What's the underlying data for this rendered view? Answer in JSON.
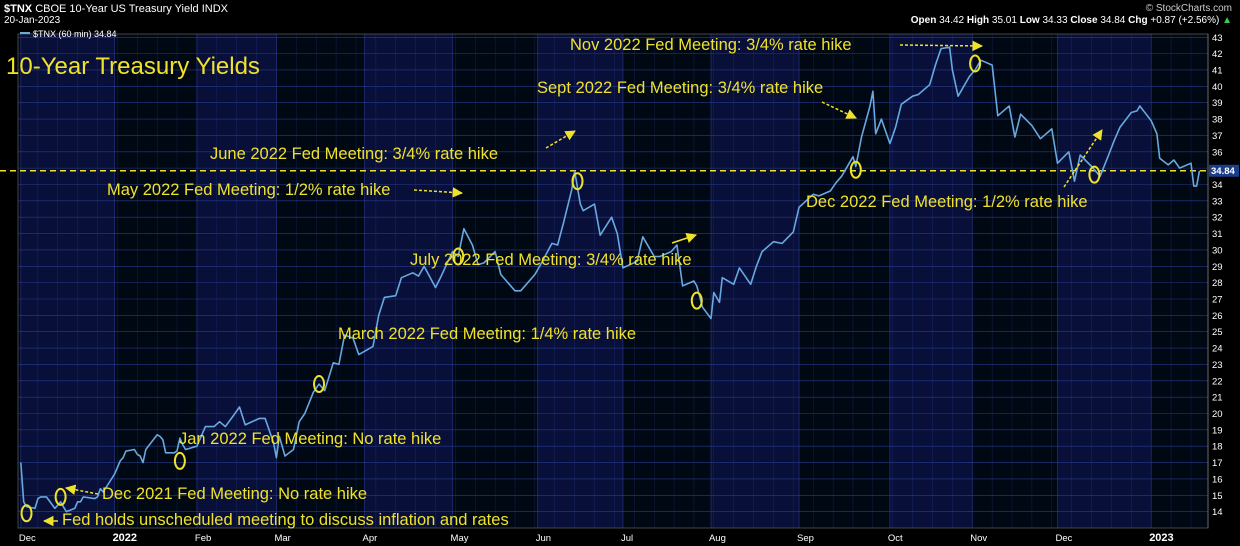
{
  "header": {
    "symbol": "$TNX",
    "name": "CBOE 10-Year US Treasury Yield INDX",
    "date": "20-Jan-2023",
    "copyright": "© StockCharts.com",
    "legend": "$TNX (60 min) 34.84",
    "quote": {
      "open_label": "Open",
      "open": "34.42",
      "high_label": "High",
      "high": "35.01",
      "low_label": "Low",
      "low": "34.33",
      "close_label": "Close",
      "close": "34.84",
      "chg_label": "Chg",
      "chg": "+0.87 (+2.56%)",
      "chg_arrow": "▲"
    }
  },
  "colors": {
    "background": "#000000",
    "band_a": "#000814",
    "band_b": "#08103a",
    "grid": "#2a3a8c",
    "line": "#67a9e0",
    "annotation": "#f0e22a",
    "text": "#ffffff"
  },
  "chart_data": {
    "type": "line",
    "title": "10-Year Treasury Yields",
    "series": [
      {
        "name": "$TNX (60 min)",
        "points": [
          [
            "2021-12-01",
            17.0
          ],
          [
            "2021-12-02",
            14.6
          ],
          [
            "2021-12-03",
            14.3
          ],
          [
            "2021-12-06",
            14.2
          ],
          [
            "2021-12-07",
            14.8
          ],
          [
            "2021-12-08",
            14.9
          ],
          [
            "2021-12-09",
            14.9
          ],
          [
            "2021-12-10",
            14.9
          ],
          [
            "2021-12-13",
            14.2
          ],
          [
            "2021-12-14",
            14.4
          ],
          [
            "2021-12-15",
            14.6
          ],
          [
            "2021-12-16",
            14.3
          ],
          [
            "2021-12-17",
            14.0
          ],
          [
            "2021-12-20",
            14.2
          ],
          [
            "2021-12-21",
            14.6
          ],
          [
            "2021-12-22",
            14.6
          ],
          [
            "2021-12-23",
            14.9
          ],
          [
            "2021-12-27",
            14.8
          ],
          [
            "2021-12-28",
            14.9
          ],
          [
            "2021-12-29",
            15.4
          ],
          [
            "2021-12-30",
            15.2
          ],
          [
            "2022-01-03",
            16.3
          ],
          [
            "2022-01-04",
            16.7
          ],
          [
            "2022-01-05",
            17.1
          ],
          [
            "2022-01-06",
            17.3
          ],
          [
            "2022-01-07",
            17.7
          ],
          [
            "2022-01-10",
            17.8
          ],
          [
            "2022-01-11",
            17.5
          ],
          [
            "2022-01-12",
            17.4
          ],
          [
            "2022-01-13",
            17.0
          ],
          [
            "2022-01-14",
            17.8
          ],
          [
            "2022-01-18",
            18.7
          ],
          [
            "2022-01-19",
            18.6
          ],
          [
            "2022-01-20",
            18.4
          ],
          [
            "2022-01-21",
            17.6
          ],
          [
            "2022-01-24",
            17.6
          ],
          [
            "2022-01-25",
            17.7
          ],
          [
            "2022-01-26",
            18.5
          ],
          [
            "2022-01-27",
            18.1
          ],
          [
            "2022-01-28",
            17.8
          ],
          [
            "2022-02-01",
            18.0
          ],
          [
            "2022-02-04",
            19.2
          ],
          [
            "2022-02-07",
            19.2
          ],
          [
            "2022-02-09",
            19.5
          ],
          [
            "2022-02-11",
            19.2
          ],
          [
            "2022-02-14",
            19.9
          ],
          [
            "2022-02-16",
            20.4
          ],
          [
            "2022-02-18",
            19.3
          ],
          [
            "2022-02-23",
            19.7
          ],
          [
            "2022-02-25",
            19.7
          ],
          [
            "2022-02-28",
            18.2
          ],
          [
            "2022-03-01",
            17.3
          ],
          [
            "2022-03-02",
            18.6
          ],
          [
            "2022-03-04",
            17.4
          ],
          [
            "2022-03-07",
            17.8
          ],
          [
            "2022-03-09",
            19.5
          ],
          [
            "2022-03-11",
            20.0
          ],
          [
            "2022-03-14",
            21.3
          ],
          [
            "2022-03-16",
            21.8
          ],
          [
            "2022-03-18",
            21.4
          ],
          [
            "2022-03-21",
            23.1
          ],
          [
            "2022-03-23",
            23.0
          ],
          [
            "2022-03-25",
            24.8
          ],
          [
            "2022-03-28",
            24.6
          ],
          [
            "2022-03-30",
            23.6
          ],
          [
            "2022-04-01",
            23.8
          ],
          [
            "2022-04-04",
            24.1
          ],
          [
            "2022-04-06",
            26.0
          ],
          [
            "2022-04-08",
            27.1
          ],
          [
            "2022-04-12",
            27.2
          ],
          [
            "2022-04-14",
            28.3
          ],
          [
            "2022-04-18",
            28.6
          ],
          [
            "2022-04-20",
            28.4
          ],
          [
            "2022-04-22",
            29.0
          ],
          [
            "2022-04-26",
            27.7
          ],
          [
            "2022-04-28",
            28.4
          ],
          [
            "2022-05-02",
            29.9
          ],
          [
            "2022-05-04",
            29.6
          ],
          [
            "2022-05-06",
            31.3
          ],
          [
            "2022-05-09",
            30.3
          ],
          [
            "2022-05-11",
            29.1
          ],
          [
            "2022-05-13",
            29.2
          ],
          [
            "2022-05-17",
            29.9
          ],
          [
            "2022-05-19",
            28.5
          ],
          [
            "2022-05-24",
            27.5
          ],
          [
            "2022-05-26",
            27.5
          ],
          [
            "2022-05-31",
            28.5
          ],
          [
            "2022-06-02",
            29.1
          ],
          [
            "2022-06-06",
            30.4
          ],
          [
            "2022-06-08",
            30.3
          ],
          [
            "2022-06-10",
            31.6
          ],
          [
            "2022-06-13",
            33.7
          ],
          [
            "2022-06-14",
            34.8
          ],
          [
            "2022-06-16",
            32.8
          ],
          [
            "2022-06-17",
            32.4
          ],
          [
            "2022-06-21",
            32.8
          ],
          [
            "2022-06-23",
            30.9
          ],
          [
            "2022-06-27",
            32.0
          ],
          [
            "2022-06-29",
            31.0
          ],
          [
            "2022-07-01",
            28.9
          ],
          [
            "2022-07-06",
            29.3
          ],
          [
            "2022-07-08",
            30.8
          ],
          [
            "2022-07-12",
            29.6
          ],
          [
            "2022-07-14",
            29.6
          ],
          [
            "2022-07-18",
            29.9
          ],
          [
            "2022-07-20",
            30.3
          ],
          [
            "2022-07-22",
            27.8
          ],
          [
            "2022-07-26",
            28.1
          ],
          [
            "2022-07-27",
            27.8
          ],
          [
            "2022-07-29",
            26.5
          ],
          [
            "2022-08-01",
            25.8
          ],
          [
            "2022-08-02",
            27.4
          ],
          [
            "2022-08-04",
            26.8
          ],
          [
            "2022-08-05",
            28.3
          ],
          [
            "2022-08-09",
            27.9
          ],
          [
            "2022-08-11",
            28.9
          ],
          [
            "2022-08-15",
            27.9
          ],
          [
            "2022-08-17",
            29.0
          ],
          [
            "2022-08-19",
            29.9
          ],
          [
            "2022-08-23",
            30.5
          ],
          [
            "2022-08-26",
            30.4
          ],
          [
            "2022-08-30",
            31.1
          ],
          [
            "2022-09-01",
            32.6
          ],
          [
            "2022-09-06",
            33.4
          ],
          [
            "2022-09-08",
            33.3
          ],
          [
            "2022-09-12",
            33.6
          ],
          [
            "2022-09-14",
            34.1
          ],
          [
            "2022-09-16",
            34.5
          ],
          [
            "2022-09-20",
            35.7
          ],
          [
            "2022-09-21",
            35.1
          ],
          [
            "2022-09-23",
            36.9
          ],
          [
            "2022-09-26",
            38.8
          ],
          [
            "2022-09-27",
            39.7
          ],
          [
            "2022-09-28",
            37.1
          ],
          [
            "2022-09-30",
            38.0
          ],
          [
            "2022-10-03",
            36.5
          ],
          [
            "2022-10-05",
            37.5
          ],
          [
            "2022-10-07",
            38.9
          ],
          [
            "2022-10-11",
            39.4
          ],
          [
            "2022-10-13",
            39.5
          ],
          [
            "2022-10-17",
            40.1
          ],
          [
            "2022-10-19",
            41.3
          ],
          [
            "2022-10-21",
            42.3
          ],
          [
            "2022-10-24",
            42.4
          ],
          [
            "2022-10-25",
            41.0
          ],
          [
            "2022-10-27",
            39.4
          ],
          [
            "2022-10-31",
            40.6
          ],
          [
            "2022-11-02",
            41.0
          ],
          [
            "2022-11-04",
            41.6
          ],
          [
            "2022-11-08",
            41.3
          ],
          [
            "2022-11-10",
            38.2
          ],
          [
            "2022-11-14",
            38.8
          ],
          [
            "2022-11-16",
            36.9
          ],
          [
            "2022-11-18",
            38.3
          ],
          [
            "2022-11-22",
            37.6
          ],
          [
            "2022-11-25",
            36.8
          ],
          [
            "2022-11-29",
            37.4
          ],
          [
            "2022-12-01",
            35.3
          ],
          [
            "2022-12-05",
            36.0
          ],
          [
            "2022-12-07",
            34.2
          ],
          [
            "2022-12-09",
            35.8
          ],
          [
            "2022-12-13",
            35.1
          ],
          [
            "2022-12-14",
            34.9
          ],
          [
            "2022-12-16",
            34.5
          ],
          [
            "2022-12-19",
            35.8
          ],
          [
            "2022-12-21",
            36.7
          ],
          [
            "2022-12-23",
            37.5
          ],
          [
            "2022-12-27",
            38.4
          ],
          [
            "2022-12-29",
            38.5
          ],
          [
            "2022-12-30",
            38.8
          ],
          [
            "2023-01-03",
            37.9
          ],
          [
            "2023-01-05",
            37.1
          ],
          [
            "2023-01-06",
            35.6
          ],
          [
            "2023-01-09",
            35.2
          ],
          [
            "2023-01-11",
            35.5
          ],
          [
            "2023-01-13",
            35.0
          ],
          [
            "2023-01-17",
            35.3
          ],
          [
            "2023-01-18",
            33.9
          ],
          [
            "2023-01-19",
            33.9
          ],
          [
            "2023-01-20",
            34.84
          ]
        ]
      }
    ],
    "reference_line": {
      "value": 34.84,
      "label": "34.84",
      "style": "dashed"
    },
    "xlim": [
      "2021-11-30",
      "2023-01-23"
    ],
    "ylim": [
      13.0,
      43.2
    ],
    "y_ticks": [
      14,
      15,
      16,
      17,
      18,
      19,
      20,
      21,
      22,
      23,
      24,
      25,
      26,
      27,
      28,
      29,
      30,
      31,
      32,
      33,
      34,
      35,
      36,
      37,
      38,
      39,
      40,
      41,
      42,
      43
    ],
    "x_ticks": [
      {
        "label": "Dec",
        "date": "2021-12-01",
        "bold": false
      },
      {
        "label": "2022",
        "date": "2022-01-03",
        "bold": true
      },
      {
        "label": "Feb",
        "date": "2022-02-01",
        "bold": false
      },
      {
        "label": "Mar",
        "date": "2022-03-01",
        "bold": false
      },
      {
        "label": "Apr",
        "date": "2022-04-01",
        "bold": false
      },
      {
        "label": "May",
        "date": "2022-05-02",
        "bold": false
      },
      {
        "label": "Jun",
        "date": "2022-06-01",
        "bold": false
      },
      {
        "label": "Jul",
        "date": "2022-07-01",
        "bold": false
      },
      {
        "label": "Aug",
        "date": "2022-08-01",
        "bold": false
      },
      {
        "label": "Sep",
        "date": "2022-09-01",
        "bold": false
      },
      {
        "label": "Oct",
        "date": "2022-10-03",
        "bold": false
      },
      {
        "label": "Nov",
        "date": "2022-11-01",
        "bold": false
      },
      {
        "label": "Dec",
        "date": "2022-12-01",
        "bold": false
      },
      {
        "label": "2023",
        "date": "2023-01-03",
        "bold": true
      }
    ],
    "grid": true,
    "annotations": [
      {
        "text": "Fed holds unscheduled meeting to discuss inflation and rates",
        "date": "2021-12-03",
        "value": 13.9
      },
      {
        "text": "Dec 2021 Fed Meeting: No rate hike",
        "date": "2021-12-15",
        "value": 14.9
      },
      {
        "text": "Jan 2022 Fed Meeting: No rate hike",
        "date": "2022-01-26",
        "value": 17.1
      },
      {
        "text": "March 2022 Fed Meeting: 1/4% rate hike",
        "date": "2022-03-16",
        "value": 21.8
      },
      {
        "text": "May 2022 Fed Meeting: 1/2% rate hike",
        "date": "2022-05-04",
        "value": 29.6
      },
      {
        "text": "June 2022 Fed Meeting: 3/4% rate hike",
        "date": "2022-06-15",
        "value": 34.2
      },
      {
        "text": "July 2022 Fed Meeting: 3/4% rate hike",
        "date": "2022-07-27",
        "value": 26.9
      },
      {
        "text": "Sept 2022 Fed Meeting: 3/4% rate hike",
        "date": "2022-09-21",
        "value": 34.9
      },
      {
        "text": "Nov 2022 Fed Meeting: 3/4% rate hike",
        "date": "2022-11-02",
        "value": 41.4
      },
      {
        "text": "Dec 2022 Fed Meeting: 1/2% rate hike",
        "date": "2022-12-14",
        "value": 34.6
      }
    ]
  }
}
